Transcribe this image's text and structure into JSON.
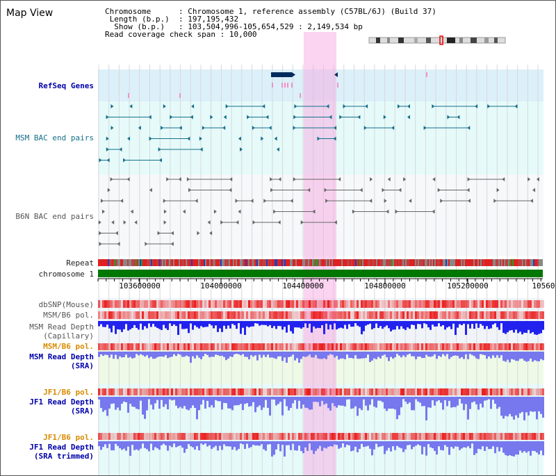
{
  "panel": {
    "title": "Map View"
  },
  "info": {
    "chromosome_key": "Chromosome      ",
    "chromosome_val": ": Chromosome 1, reference assembly (C57BL/6J) (Build 37)",
    "length_key": " Length (b.p.)  ",
    "length_val": ": 197,195,432",
    "show_key": "  Show (b.p.)   ",
    "show_val": ": 103,504,996-105,654,529 : 2,149,534 bp",
    "coverage_key": "Read coverage check span ",
    "coverage_val": ": 10,000"
  },
  "tracks": {
    "refseq": "RefSeq Genes",
    "msm_bac": "MSM BAC end pairs",
    "b6n_bac": "B6N BAC end pairs",
    "repeat": "Repeat",
    "chromosome": "chromosome 1",
    "dbsnp": "dbSNP(Mouse)",
    "msm_b6_pol_1": "MSM/B6 pol.",
    "msm_read_depth_cap_1": "MSM Read Depth",
    "msm_read_depth_cap_2": "(Capillary)",
    "msm_b6_pol_2": "MSM/B6 pol.",
    "msm_read_depth_sra_1": "MSM Read Depth",
    "msm_read_depth_sra_2": "(SRA)",
    "jf1_b6_pol_1": "JF1/B6 pol.",
    "jf1_read_depth_sra_1": "JF1 Read Depth",
    "jf1_read_depth_sra_2": "(SRA)",
    "jf1_b6_pol_2": "JF1/B6 pol.",
    "jf1_read_depth_trim_1": "JF1 Read Depth",
    "jf1_read_depth_trim_2": "(SRA trimmed)"
  },
  "axis": {
    "ticks": [
      "103600000",
      "104000000",
      "104400000",
      "104800000",
      "105200000",
      "10560"
    ]
  },
  "colors": {
    "refseq_bg": "#dcf0fa",
    "track_bg": "#e6fafa",
    "highlight": "#f5aae1",
    "chromosome": "#007700",
    "msm_color": "#136f8a",
    "b6n_color": "#666666",
    "snp_red": "#ee2222",
    "depth_blue": "#2222ee",
    "depth_light": "#7777ee"
  }
}
